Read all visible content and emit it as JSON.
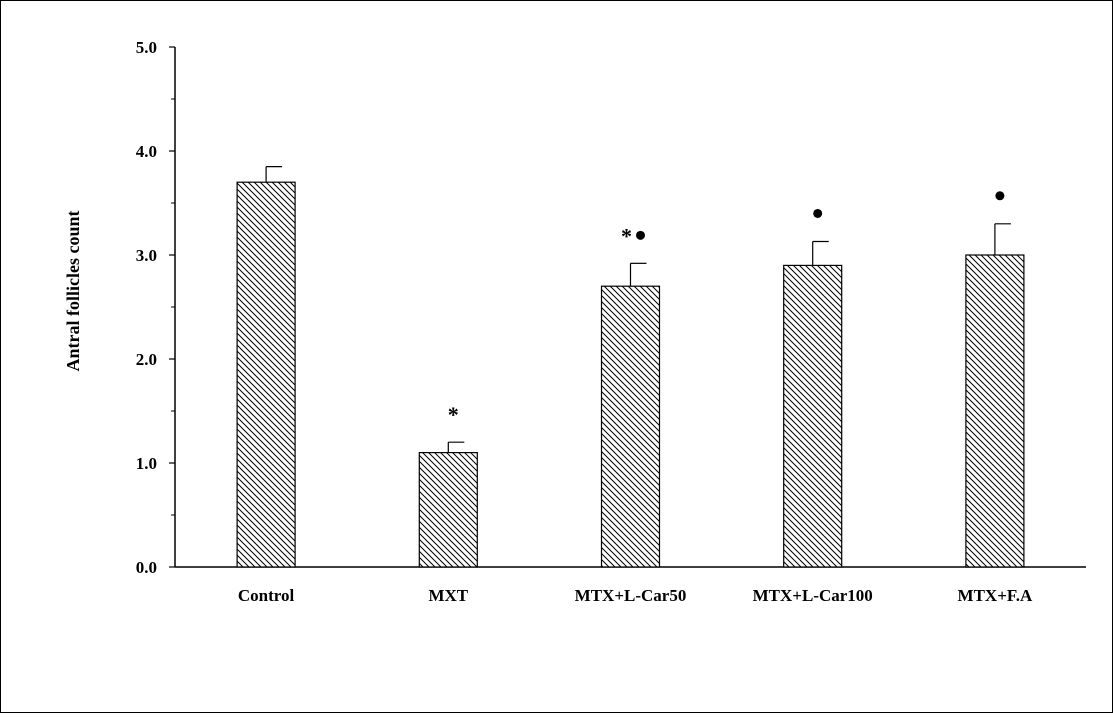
{
  "chart_data": {
    "type": "bar",
    "title": "",
    "xlabel": "",
    "ylabel": "Antral follicles count",
    "ylim": [
      0,
      5
    ],
    "yticks": [
      "0.0",
      "1.0",
      "2.0",
      "3.0",
      "4.0",
      "5.0"
    ],
    "categories": [
      "Control",
      "MXT",
      "MTX+L-Car50",
      "MTX+L-Car100",
      "MTX+F.A"
    ],
    "values": [
      3.7,
      1.1,
      2.7,
      2.9,
      3.0
    ],
    "errors": [
      0.15,
      0.1,
      0.22,
      0.23,
      0.3
    ],
    "annotations": [
      "",
      "*",
      "*●",
      "●",
      "●"
    ],
    "grid": false,
    "bar_fill": "hatched",
    "colors": {
      "bar_stroke": "#000000",
      "hatch": "#000000",
      "background": "#ffffff"
    }
  }
}
